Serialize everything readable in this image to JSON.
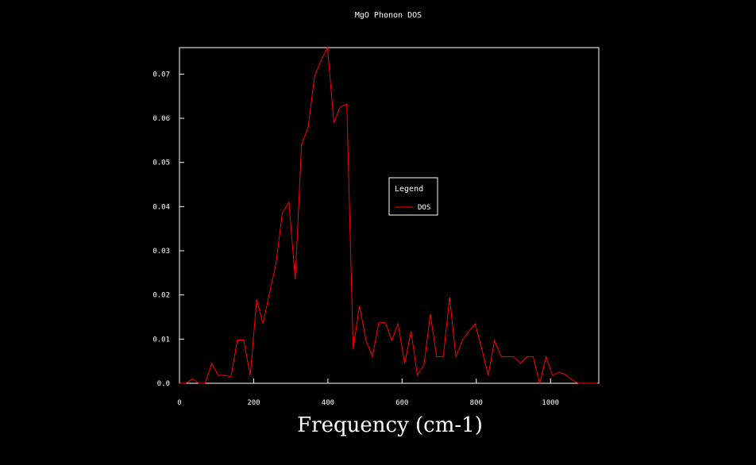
{
  "chart_data": {
    "type": "line",
    "title": "MgO Phonon DOS",
    "xlabel": "Frequency (cm-1)",
    "ylabel": "",
    "xlim": [
      0,
      1130
    ],
    "ylim": [
      0,
      0.076
    ],
    "xticks": [
      0,
      200,
      400,
      600,
      800,
      1000
    ],
    "yticks": [
      0.0,
      0.01,
      0.02,
      0.03,
      0.04,
      0.05,
      0.06,
      0.07
    ],
    "ytick_labels": [
      "0.0",
      "0.01",
      "0.02",
      "0.03",
      "0.04",
      "0.05",
      "0.06",
      "0.07"
    ],
    "grid": false,
    "legend": {
      "title": "Legend",
      "position": "center-right"
    },
    "series": [
      {
        "name": "DOS",
        "color": "#ff0000",
        "x": [
          0,
          17,
          35,
          52,
          69,
          87,
          104,
          121,
          139,
          156,
          173,
          191,
          208,
          225,
          243,
          260,
          277,
          295,
          312,
          329,
          347,
          364,
          381,
          399,
          416,
          433,
          451,
          468,
          485,
          503,
          520,
          537,
          555,
          572,
          589,
          607,
          624,
          641,
          659,
          676,
          693,
          711,
          728,
          745,
          763,
          780,
          797,
          815,
          832,
          849,
          867,
          884,
          901,
          919,
          936,
          953,
          971,
          988,
          1005,
          1023,
          1040,
          1057,
          1075,
          1092,
          1109,
          1127
        ],
        "y": [
          0,
          0,
          0.001,
          0,
          0,
          0.0045,
          0.0018,
          0.0018,
          0.0015,
          0.0098,
          0.0098,
          0.0018,
          0.019,
          0.0135,
          0.0205,
          0.027,
          0.0385,
          0.041,
          0.0235,
          0.054,
          0.058,
          0.0695,
          0.073,
          0.076,
          0.059,
          0.0625,
          0.0632,
          0.0077,
          0.0175,
          0.0097,
          0.006,
          0.0137,
          0.0137,
          0.0097,
          0.0135,
          0.0045,
          0.0118,
          0.0018,
          0.0042,
          0.0157,
          0.006,
          0.006,
          0.0195,
          0.006,
          0.0098,
          0.0118,
          0.0135,
          0.0077,
          0.0018,
          0.0097,
          0.006,
          0.006,
          0.006,
          0.0045,
          0.006,
          0.006,
          0,
          0.006,
          0.0018,
          0.0025,
          0.002,
          0.0008,
          0,
          0,
          0,
          0
        ]
      }
    ]
  }
}
